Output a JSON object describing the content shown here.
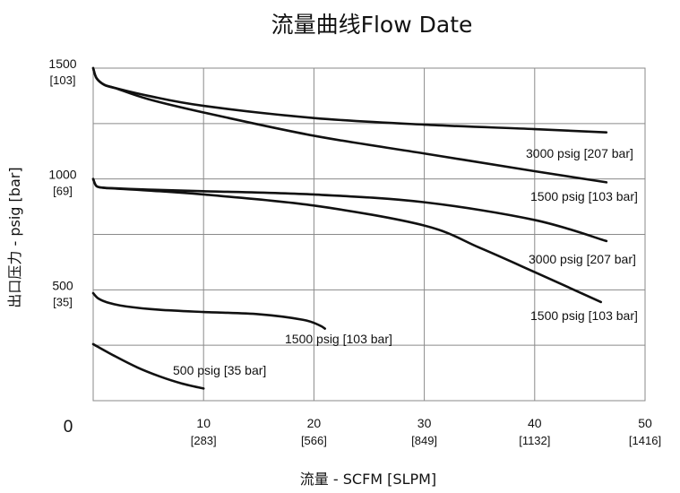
{
  "chart_data": {
    "type": "line",
    "title": "流量曲线Flow Date",
    "xlabel": "流量 - SCFM [SLPM]",
    "ylabel": "出口压力 - psig [bar]",
    "origin_label": "0",
    "xlim": [
      0,
      50
    ],
    "ylim": [
      0,
      1500
    ],
    "grid": true,
    "x_ticks": [
      {
        "value": 10,
        "label": "10",
        "sub": "[283]"
      },
      {
        "value": 20,
        "label": "20",
        "sub": "[566]"
      },
      {
        "value": 30,
        "label": "30",
        "sub": "[849]"
      },
      {
        "value": 40,
        "label": "40",
        "sub": "[1132]"
      },
      {
        "value": 50,
        "label": "50",
        "sub": "[1416]"
      }
    ],
    "y_ticks": [
      {
        "value": 1500,
        "label": "1500",
        "sub": "[103]"
      },
      {
        "value": 1000,
        "label": "1000",
        "sub": "[69]"
      },
      {
        "value": 500,
        "label": "500",
        "sub": "[35]"
      }
    ],
    "series": [
      {
        "name": "3000 psig [207 bar]",
        "x": [
          0,
          0.3,
          1,
          2,
          5,
          10,
          20,
          30,
          40,
          46.5
        ],
        "y": [
          1500,
          1455,
          1425,
          1410,
          1375,
          1330,
          1275,
          1245,
          1225,
          1210
        ]
      },
      {
        "name": "1500 psig [103 bar]",
        "x": [
          0,
          0.3,
          1,
          2,
          5,
          10,
          20,
          30,
          40,
          46.5
        ],
        "y": [
          1500,
          1455,
          1425,
          1410,
          1360,
          1300,
          1195,
          1115,
          1035,
          985
        ]
      },
      {
        "name": "3000 psig [207 bar]",
        "x": [
          0,
          0.3,
          1,
          2,
          5,
          10,
          20,
          30,
          40,
          46.5
        ],
        "y": [
          1000,
          968,
          960,
          958,
          952,
          945,
          930,
          895,
          815,
          720
        ]
      },
      {
        "name": "1500 psig [103 bar]",
        "x": [
          0,
          0.3,
          1,
          2,
          5,
          10,
          20,
          30,
          35,
          40,
          46
        ],
        "y": [
          1000,
          968,
          960,
          957,
          948,
          930,
          880,
          790,
          690,
          580,
          445
        ]
      },
      {
        "name": "1500 psig [103 bar]",
        "x": [
          0,
          0.5,
          1.5,
          3,
          6,
          10,
          15,
          19,
          20.5,
          21
        ],
        "y": [
          485,
          460,
          440,
          425,
          410,
          400,
          390,
          365,
          340,
          325
        ]
      },
      {
        "name": "500 psig [35 bar]",
        "x": [
          0,
          2,
          4,
          6,
          8,
          10
        ],
        "y": [
          255,
          200,
          150,
          110,
          78,
          55
        ]
      }
    ]
  }
}
